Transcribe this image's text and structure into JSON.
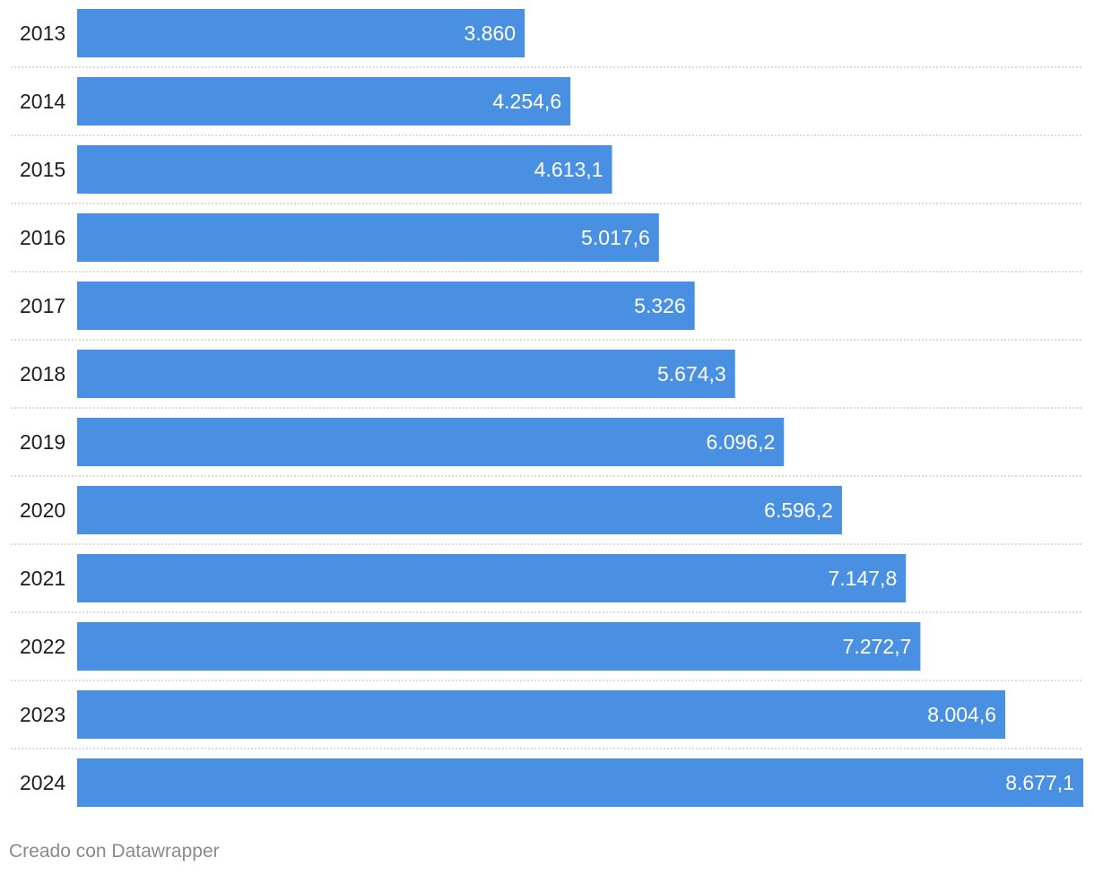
{
  "chart_data": {
    "type": "bar",
    "orientation": "horizontal",
    "categories": [
      "2013",
      "2014",
      "2015",
      "2016",
      "2017",
      "2018",
      "2019",
      "2020",
      "2021",
      "2022",
      "2023",
      "2024"
    ],
    "values": [
      3860,
      4254.6,
      4613.1,
      5017.6,
      5326,
      5674.3,
      6096.2,
      6596.2,
      7147.8,
      7272.7,
      8004.6,
      8677.1
    ],
    "value_labels": [
      "3.860",
      "4.254,6",
      "4.613,1",
      "5.017,6",
      "5.326",
      "5.674,3",
      "6.096,2",
      "6.596,2",
      "7.147,8",
      "7.272,7",
      "8.004,6",
      "8.677,1"
    ],
    "title": "",
    "xlabel": "",
    "ylabel": "",
    "xlim": [
      0,
      8677.1
    ],
    "grid": false,
    "legend": "none",
    "bar_color": "#4a90e2"
  },
  "footer": {
    "credit": "Creado con Datawrapper"
  }
}
